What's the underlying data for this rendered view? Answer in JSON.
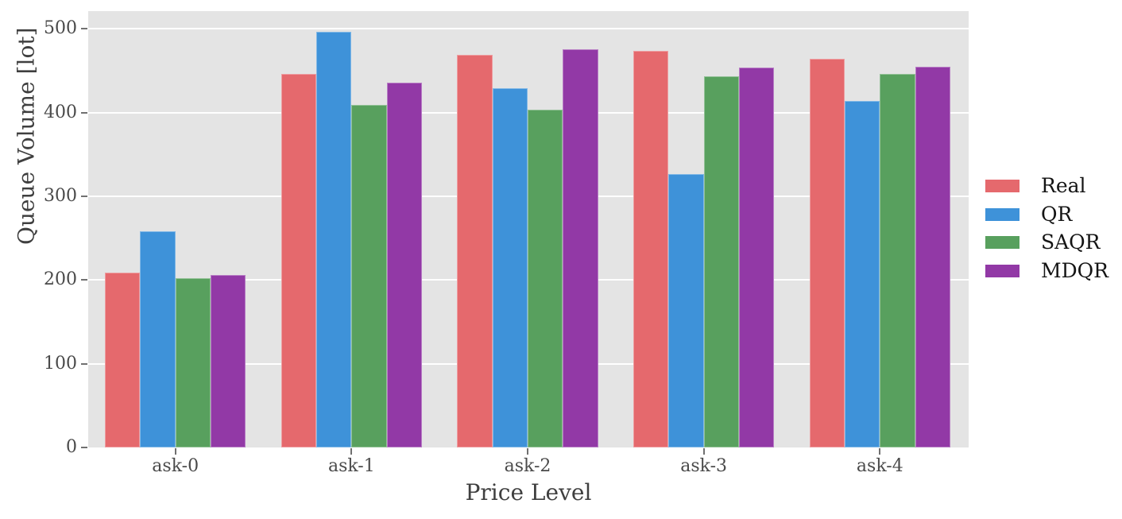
{
  "chart_data": {
    "type": "bar",
    "title": "",
    "xlabel": "Price Level",
    "ylabel": "Queue Volume [lot]",
    "categories": [
      "ask-0",
      "ask-1",
      "ask-2",
      "ask-3",
      "ask-4"
    ],
    "series": [
      {
        "name": "Real",
        "color": "#e5696d",
        "values": [
          209,
          446,
          469,
          474,
          464
        ]
      },
      {
        "name": "QR",
        "color": "#3e92d9",
        "values": [
          258,
          496,
          429,
          326,
          414
        ]
      },
      {
        "name": "SAQR",
        "color": "#58a05e",
        "values": [
          202,
          409,
          403,
          443,
          446
        ]
      },
      {
        "name": "MDQR",
        "color": "#9239a6",
        "values": [
          206,
          436,
          475,
          454,
          455
        ]
      }
    ],
    "yticks": [
      0,
      100,
      200,
      300,
      400,
      500
    ],
    "ylim": [
      0,
      521
    ],
    "grid": true,
    "legend_position": "center right",
    "plot_background": "#e4e4e4",
    "grid_color": "#ffffff",
    "tick_color": "#4a4a4a",
    "axis_label_color": "#3f3f3f",
    "legend_text_color": "#141414"
  }
}
